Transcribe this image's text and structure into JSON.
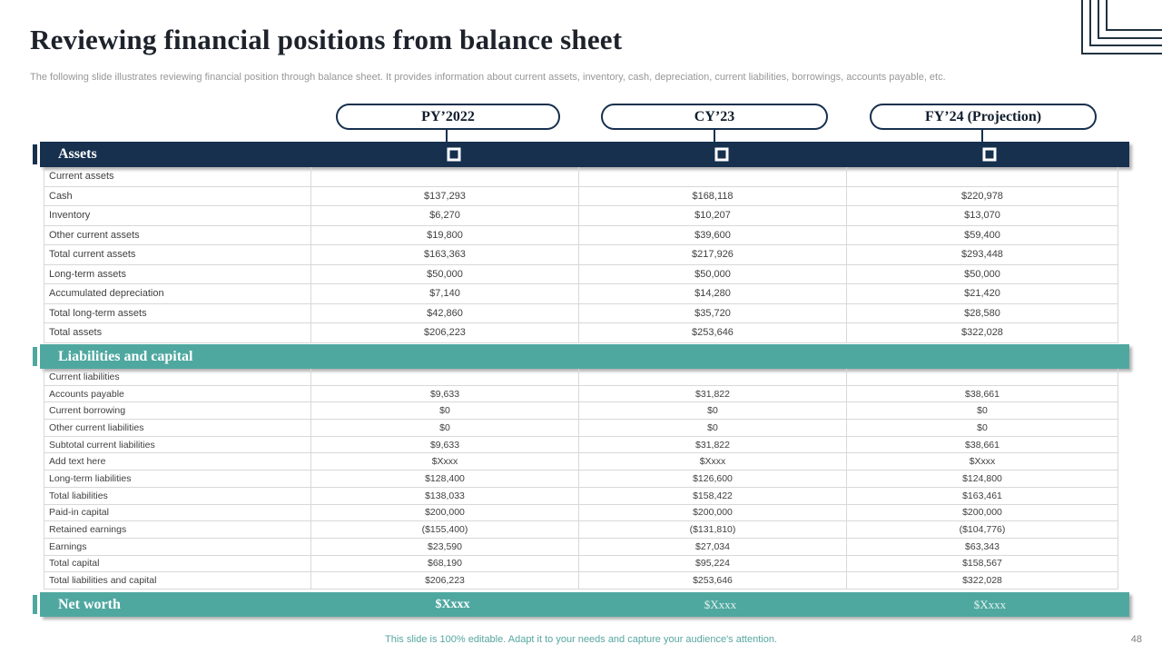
{
  "slide": {
    "title": "Reviewing financial positions from balance sheet",
    "subtitle": "The following slide illustrates reviewing financial position through balance sheet. It provides information about current assets, inventory, cash, depreciation, current liabilities, borrowings, accounts payable, etc.",
    "footer_note": "This slide is 100% editable. Adapt it to your needs and capture your audience's attention.",
    "page_number": "48"
  },
  "colors": {
    "navy": "#16304e",
    "teal": "#4fa8a0",
    "grid": "#d8d8d8",
    "footer_teal": "#56a6a0"
  },
  "columns": [
    "PY’2022",
    "CY’23",
    "FY’24 (Projection)"
  ],
  "table": {
    "sections": [
      {
        "header": "Assets",
        "style": "navy",
        "rows": [
          {
            "label": "Current assets",
            "values": [
              "",
              "",
              ""
            ]
          },
          {
            "label": "Cash",
            "values": [
              "$137,293",
              "$168,118",
              "$220,978"
            ]
          },
          {
            "label": "Inventory",
            "values": [
              "$6,270",
              "$10,207",
              "$13,070"
            ]
          },
          {
            "label": "Other current assets",
            "values": [
              "$19,800",
              "$39,600",
              "$59,400"
            ]
          },
          {
            "label": "Total current assets",
            "values": [
              "$163,363",
              "$217,926",
              "$293,448"
            ]
          },
          {
            "label": "Long-term assets",
            "values": [
              "$50,000",
              "$50,000",
              "$50,000"
            ]
          },
          {
            "label": "Accumulated depreciation",
            "values": [
              "$7,140",
              "$14,280",
              "$21,420"
            ]
          },
          {
            "label": "Total long-term assets",
            "values": [
              "$42,860",
              "$35,720",
              "$28,580"
            ]
          },
          {
            "label": "Total assets",
            "values": [
              "$206,223",
              "$253,646",
              "$322,028"
            ]
          }
        ]
      },
      {
        "header": "Liabilities and capital",
        "style": "teal",
        "rows": [
          {
            "label": "Current liabilities",
            "values": [
              "",
              "",
              ""
            ]
          },
          {
            "label": "Accounts payable",
            "values": [
              "$9,633",
              "$31,822",
              "$38,661"
            ]
          },
          {
            "label": "Current borrowing",
            "values": [
              "$0",
              "$0",
              "$0"
            ]
          },
          {
            "label": "Other current liabilities",
            "values": [
              "$0",
              "$0",
              "$0"
            ]
          },
          {
            "label": "Subtotal current liabilities",
            "values": [
              "$9,633",
              "$31,822",
              "$38,661"
            ]
          },
          {
            "label": "Add text here",
            "values": [
              "$Xxxx",
              "$Xxxx",
              "$Xxxx"
            ]
          },
          {
            "label": "Long-term liabilities",
            "values": [
              "$128,400",
              "$126,600",
              "$124,800"
            ]
          },
          {
            "label": "Total liabilities",
            "values": [
              "$138,033",
              "$158,422",
              "$163,461"
            ]
          },
          {
            "label": "Paid-in capital",
            "values": [
              "$200,000",
              "$200,000",
              "$200,000"
            ]
          },
          {
            "label": "Retained earnings",
            "values": [
              "($155,400)",
              "($131,810)",
              "($104,776)"
            ]
          },
          {
            "label": "Earnings",
            "values": [
              "$23,590",
              "$27,034",
              "$63,343"
            ]
          },
          {
            "label": "Total capital",
            "values": [
              "$68,190",
              "$95,224",
              "$158,567"
            ]
          },
          {
            "label": "Total liabilities and capital",
            "values": [
              "$206,223",
              "$253,646",
              "$322,028"
            ]
          }
        ]
      }
    ],
    "net_worth": {
      "label": "Net worth",
      "values": [
        "$Xxxx",
        "$Xxxx",
        "$Xxxx"
      ]
    }
  }
}
